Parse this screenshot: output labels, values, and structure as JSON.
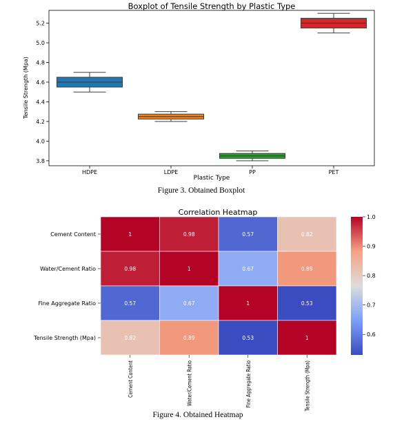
{
  "chart_data": [
    {
      "type": "boxplot",
      "title": "Boxplot of Tensile Strength by Plastic Type",
      "xlabel": "Plastic Type",
      "ylabel": "Tensile Strength (Mpa)",
      "ylim": [
        3.75,
        5.33
      ],
      "yticks": [
        "3.8",
        "4.0",
        "4.2",
        "4.4",
        "4.6",
        "4.8",
        "5.0",
        "5.2"
      ],
      "grid": false,
      "categories": [
        "HDPE",
        "LDPE",
        "PP",
        "PET"
      ],
      "boxes": [
        {
          "category": "HDPE",
          "min": 4.5,
          "q1": 4.55,
          "median": 4.6,
          "q3": 4.65,
          "max": 4.7,
          "color": "#1f77b4"
        },
        {
          "category": "LDPE",
          "min": 4.2,
          "q1": 4.225,
          "median": 4.25,
          "q3": 4.275,
          "max": 4.3,
          "color": "#ff7f0e"
        },
        {
          "category": "PP",
          "min": 3.8,
          "q1": 3.825,
          "median": 3.85,
          "q3": 3.875,
          "max": 3.9,
          "color": "#2ca02c"
        },
        {
          "category": "PET",
          "min": 5.1,
          "q1": 5.15,
          "median": 5.2,
          "q3": 5.25,
          "max": 5.3,
          "color": "#d62728"
        }
      ],
      "caption": "Figure 3. Obtained Boxplot"
    },
    {
      "type": "heatmap",
      "title": "Correlation Heatmap",
      "rows": [
        "Cement Content",
        "Water/Cement Ratio",
        "Fine Aggregate Ratio",
        "Tensile Strength (Mpa)"
      ],
      "columns": [
        "Cement Content",
        "Water/Cement Ratio",
        "Fine Aggregate Ratio",
        "Tensile Strength (Mpa)"
      ],
      "values": [
        [
          1,
          0.98,
          0.57,
          0.82
        ],
        [
          0.98,
          1,
          0.67,
          0.89
        ],
        [
          0.57,
          0.67,
          1,
          0.53
        ],
        [
          0.82,
          0.89,
          0.53,
          1
        ]
      ],
      "colormap": "coolwarm",
      "colorbar": {
        "min": 0.53,
        "max": 1.0,
        "ticks": [
          "0.6",
          "0.7",
          "0.8",
          "0.9",
          "1.0"
        ]
      },
      "caption": "Figure 4. Obtained Heatmap"
    }
  ]
}
